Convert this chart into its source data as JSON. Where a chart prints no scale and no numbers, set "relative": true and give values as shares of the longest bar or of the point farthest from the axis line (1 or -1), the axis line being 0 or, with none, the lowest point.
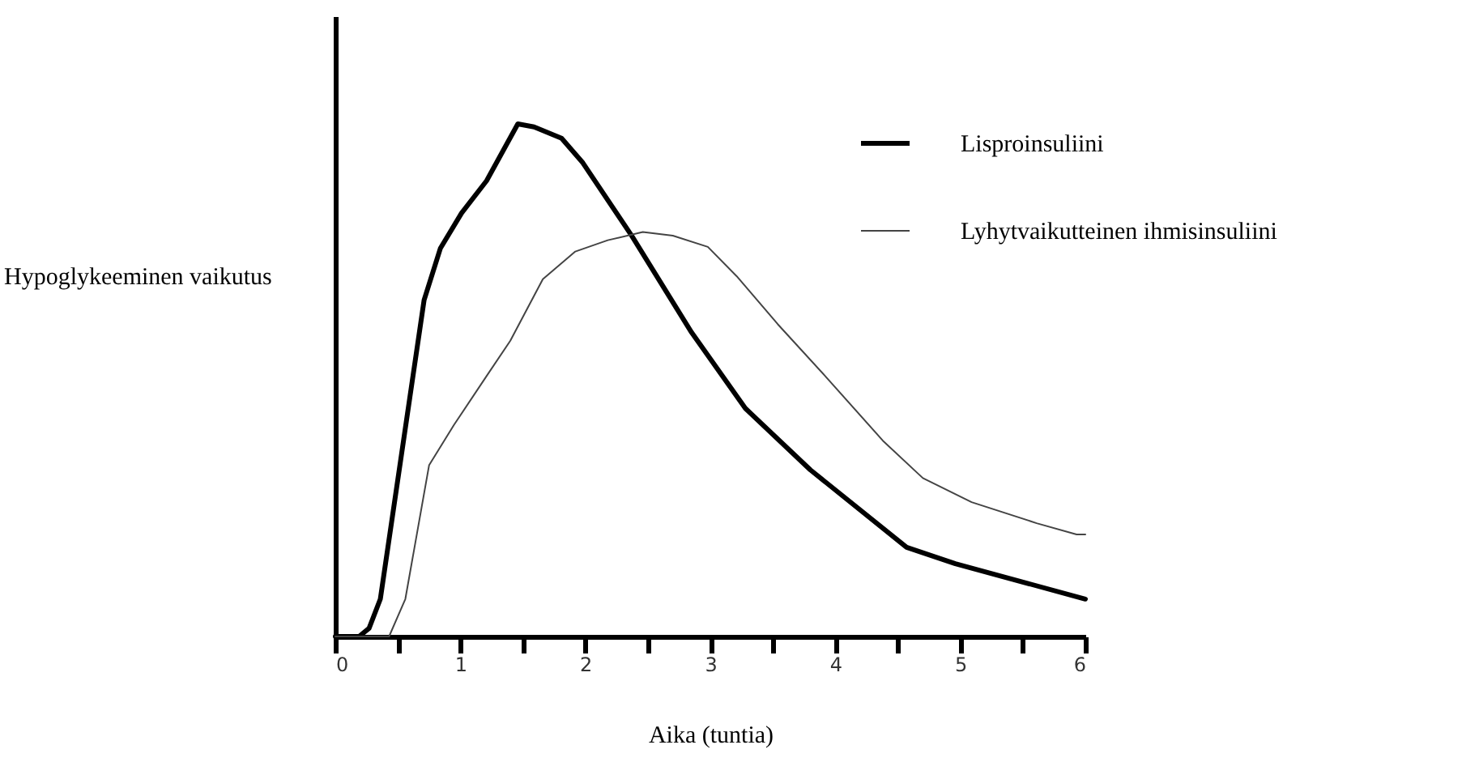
{
  "chart_data": {
    "type": "line",
    "relative": true,
    "xlabel": "Aika (tuntia)",
    "ylabel": "Hypoglykeeminen vaikutus",
    "xlim": [
      0,
      6
    ],
    "xticks": [
      0,
      {
        "value": 0.5,
        "label": null
      },
      1,
      {
        "value": 1.5,
        "label": null
      },
      2,
      {
        "value": 2.5,
        "label": null
      },
      3,
      {
        "value": 3.5,
        "label": null
      },
      4,
      {
        "value": 4.5,
        "label": null
      },
      5,
      {
        "value": 5.5,
        "label": null
      },
      6
    ],
    "legend": "top right",
    "grid": false,
    "series": [
      {
        "name": "Lisproinsuliini",
        "color": "#000000",
        "x": [
          0,
          0.19,
          0.27,
          0.36,
          0.71,
          0.84,
          1.01,
          1.21,
          1.46,
          1.59,
          1.81,
          1.98,
          2.37,
          2.85,
          3.28,
          3.8,
          4.57,
          4.96,
          6
        ],
        "values": [
          0,
          0,
          0.016,
          0.073,
          0.656,
          0.757,
          0.826,
          0.889,
          1,
          0.994,
          0.972,
          0.924,
          0.782,
          0.593,
          0.445,
          0.325,
          0.174,
          0.142,
          0.073
        ]
      },
      {
        "name": "Lyhytvaikutteinen ihmisinsuliini",
        "color": "#444444",
        "x": [
          0,
          0.43,
          0.56,
          0.75,
          0.95,
          1.21,
          1.4,
          1.66,
          1.92,
          2.18,
          2.46,
          2.7,
          2.98,
          3.21,
          3.54,
          3.93,
          4.38,
          4.7,
          5.09,
          5.61,
          5.93,
          6
        ],
        "values": [
          0,
          0,
          0.073,
          0.334,
          0.413,
          0.508,
          0.577,
          0.697,
          0.751,
          0.773,
          0.789,
          0.782,
          0.76,
          0.703,
          0.609,
          0.505,
          0.382,
          0.309,
          0.262,
          0.221,
          0.199,
          0.199
        ]
      }
    ]
  }
}
